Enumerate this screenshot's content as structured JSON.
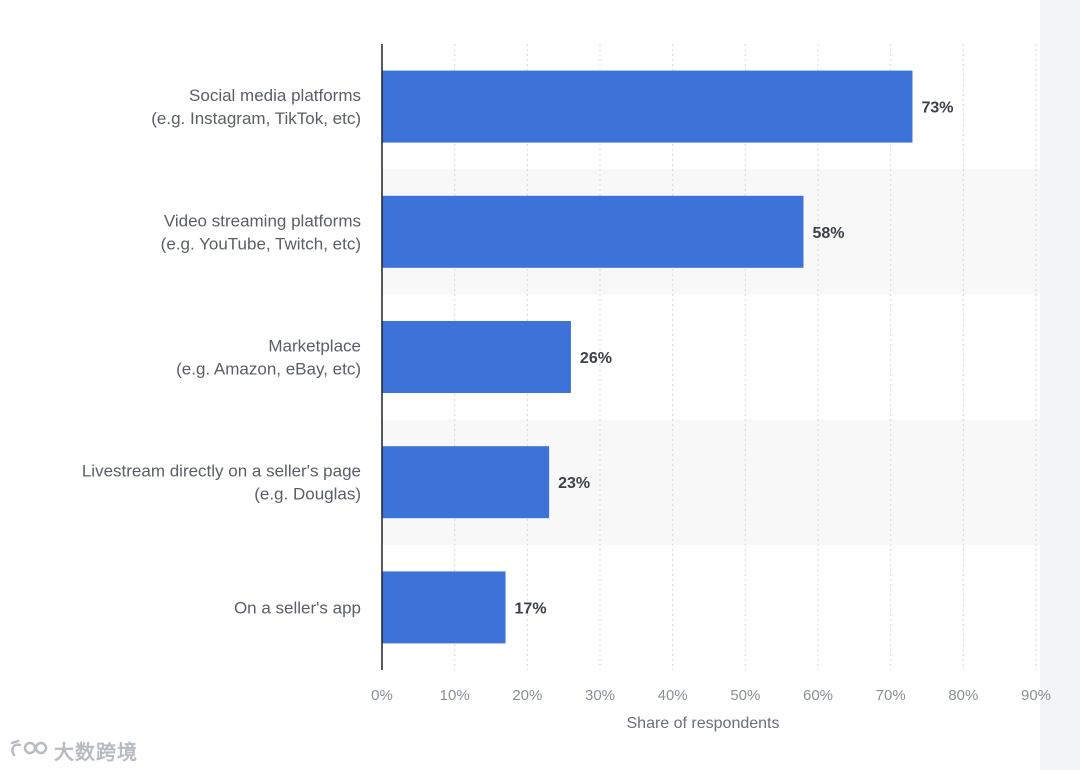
{
  "chart_data": {
    "type": "bar",
    "orientation": "horizontal",
    "categories": [
      [
        "Social media platforms",
        "(e.g. Instagram, TikTok, etc)"
      ],
      [
        "Video streaming platforms",
        "(e.g. YouTube, Twitch, etc)"
      ],
      [
        "Marketplace",
        "(e.g. Amazon, eBay, etc)"
      ],
      [
        "Livestream directly on a seller's page",
        "(e.g. Douglas)"
      ],
      [
        "On a seller's app"
      ]
    ],
    "values": [
      73,
      58,
      26,
      23,
      17
    ],
    "value_labels": [
      "73%",
      "58%",
      "26%",
      "23%",
      "17%"
    ],
    "xlim": [
      0,
      90
    ],
    "x_ticks": [
      0,
      10,
      20,
      30,
      40,
      50,
      60,
      70,
      80,
      90
    ],
    "x_tick_labels": [
      "0%",
      "10%",
      "20%",
      "30%",
      "40%",
      "50%",
      "60%",
      "70%",
      "80%",
      "90%"
    ],
    "xlabel": "Share of respondents",
    "grid": "vertical-dotted",
    "bar_color": "#3d72d8"
  },
  "watermark": {
    "logo_text": "100",
    "text": "大数跨境"
  }
}
